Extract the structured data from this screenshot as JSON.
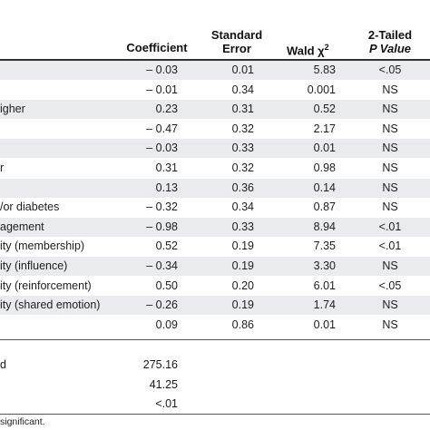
{
  "table": {
    "columns": {
      "coefficient": "Coefficient",
      "se_line1": "Standard",
      "se_line2": "Error",
      "wald_prefix": "Wald χ",
      "wald_sup": "2",
      "p_line1": "2-Tailed",
      "p_line2": "P Value"
    },
    "rows": [
      {
        "label": "",
        "coef": "– 0.03",
        "se": "0.01",
        "wald": "5.83",
        "p": "<.05"
      },
      {
        "label": "",
        "coef": "– 0.01",
        "se": "0.34",
        "wald": "0.001",
        "p": "NS"
      },
      {
        "label": "igher",
        "coef": "0.23",
        "se": "0.31",
        "wald": "0.52",
        "p": "NS"
      },
      {
        "label": "",
        "coef": "– 0.47",
        "se": "0.32",
        "wald": "2.17",
        "p": "NS"
      },
      {
        "label": "",
        "coef": "– 0.03",
        "se": "0.33",
        "wald": "0.01",
        "p": "NS"
      },
      {
        "label": "r",
        "coef": "0.31",
        "se": "0.32",
        "wald": "0.98",
        "p": "NS"
      },
      {
        "label": "",
        "coef": "0.13",
        "se": "0.36",
        "wald": "0.14",
        "p": "NS"
      },
      {
        "label": "/or diabetes",
        "coef": "– 0.32",
        "se": "0.34",
        "wald": "0.87",
        "p": "NS"
      },
      {
        "label": "agement",
        "coef": "– 0.98",
        "se": "0.33",
        "wald": "8.94",
        "p": "<.01"
      },
      {
        "label": "ity (membership)",
        "coef": "0.52",
        "se": "0.19",
        "wald": "7.35",
        "p": "<.01"
      },
      {
        "label": "ity (influence)",
        "coef": "– 0.34",
        "se": "0.19",
        "wald": "3.30",
        "p": "NS"
      },
      {
        "label": "ity (reinforcement)",
        "coef": "0.50",
        "se": "0.20",
        "wald": "6.01",
        "p": "<.05"
      },
      {
        "label": "ity (shared emotion)",
        "coef": "– 0.26",
        "se": "0.19",
        "wald": "1.74",
        "p": "NS"
      },
      {
        "label": "",
        "coef": "0.09",
        "se": "0.86",
        "wald": "0.01",
        "p": "NS"
      }
    ],
    "fit": [
      {
        "label": "d",
        "value": "275.16"
      },
      {
        "label": "",
        "value": "41.25"
      },
      {
        "label": "",
        "value": "<.01"
      }
    ],
    "footnote": "significant."
  }
}
